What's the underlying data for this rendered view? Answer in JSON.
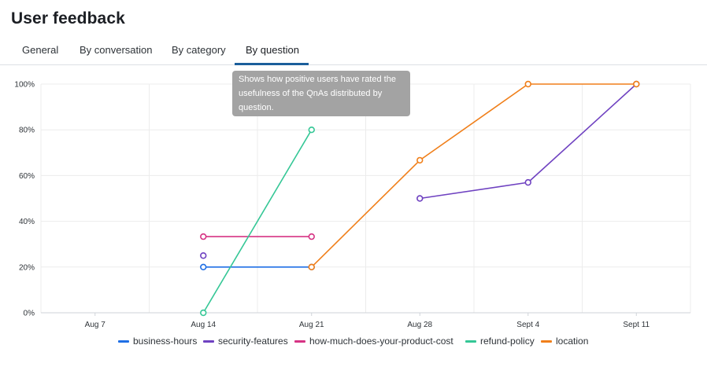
{
  "page": {
    "title": "User feedback"
  },
  "tabs": [
    {
      "label": "General",
      "active": false
    },
    {
      "label": "By conversation",
      "active": false
    },
    {
      "label": "By category",
      "active": false
    },
    {
      "label": "By question",
      "active": true
    }
  ],
  "tooltip": {
    "text": "Shows how positive users have rated the usefulness of the QnAs distributed by question."
  },
  "colors": {
    "business-hours": "#1f6fe5",
    "security-features": "#6f42c1",
    "how-much-does-your-product-cost": "#d63384",
    "refund-policy": "#35c796",
    "location": "#f07f1a"
  },
  "chart_data": {
    "type": "line",
    "title": "",
    "xlabel": "",
    "ylabel": "",
    "categories": [
      "Aug 7",
      "Aug 14",
      "Aug 21",
      "Aug 28",
      "Sept 4",
      "Sept 11"
    ],
    "y_ticks": [
      "0%",
      "20%",
      "40%",
      "60%",
      "80%",
      "100%"
    ],
    "ylim": [
      0,
      100
    ],
    "grid": true,
    "legend_position": "bottom",
    "series": [
      {
        "name": "business-hours",
        "values": [
          null,
          20,
          20,
          null,
          null,
          null
        ]
      },
      {
        "name": "security-features",
        "values": [
          null,
          25,
          null,
          50,
          57,
          100
        ]
      },
      {
        "name": "how-much-does-your-product-cost",
        "values": [
          null,
          33.3,
          33.3,
          null,
          null,
          null
        ]
      },
      {
        "name": "refund-policy",
        "values": [
          null,
          0,
          80,
          null,
          null,
          null
        ]
      },
      {
        "name": "location",
        "values": [
          null,
          null,
          20,
          66.7,
          100,
          100
        ]
      }
    ]
  }
}
